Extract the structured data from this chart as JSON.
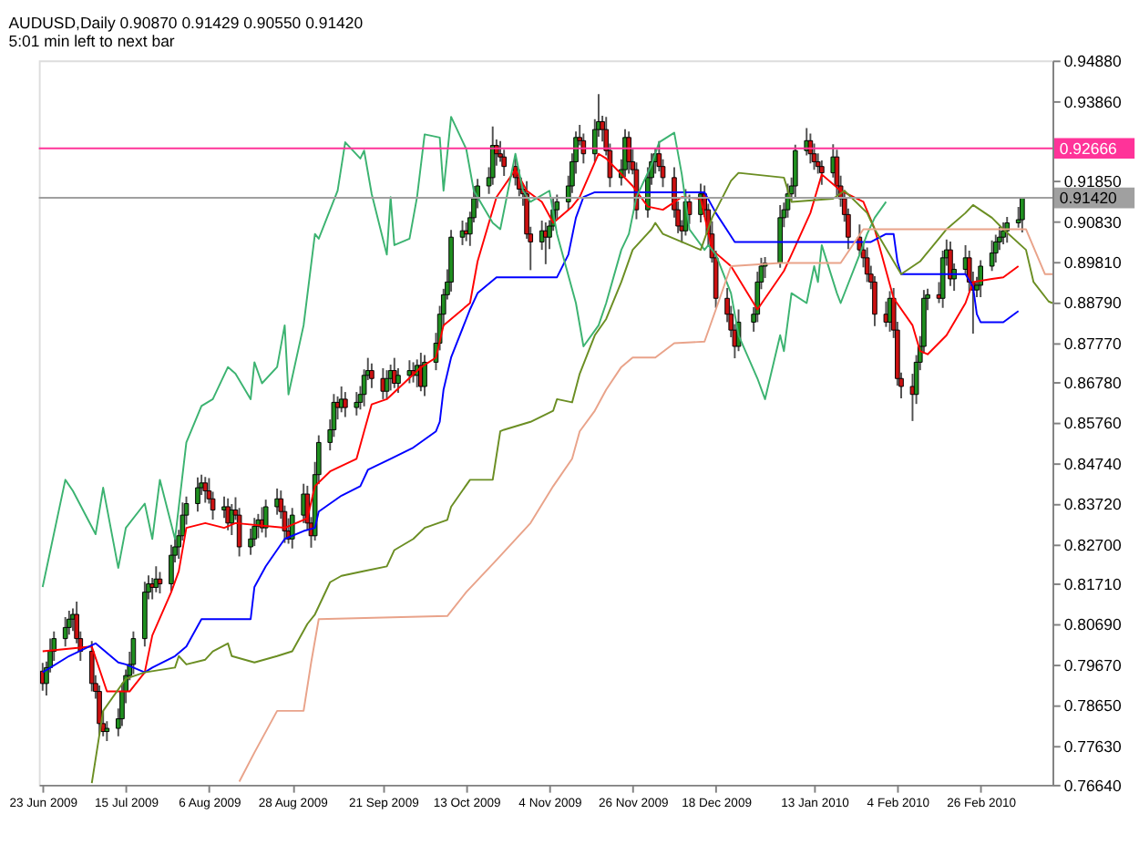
{
  "chart_data": {
    "type": "candlestick",
    "title": "AUDUSD,Daily  0.90870 0.91429 0.90550 0.91420",
    "subtitle": "5:01 min left to next bar",
    "x": [
      "2009-06-23",
      "2009-06-24",
      "2009-06-25",
      "2009-06-26",
      "2009-06-29",
      "2009-06-30",
      "2009-07-01",
      "2009-07-02",
      "2009-07-03",
      "2009-07-06",
      "2009-07-07",
      "2009-07-08",
      "2009-07-09",
      "2009-07-10",
      "2009-07-13",
      "2009-07-14",
      "2009-07-15",
      "2009-07-16",
      "2009-07-17",
      "2009-07-20",
      "2009-07-21",
      "2009-07-22",
      "2009-07-23",
      "2009-07-24",
      "2009-07-27",
      "2009-07-28",
      "2009-07-29",
      "2009-07-30",
      "2009-07-31",
      "2009-08-03",
      "2009-08-04",
      "2009-08-05",
      "2009-08-06",
      "2009-08-07",
      "2009-08-10",
      "2009-08-11",
      "2009-08-12",
      "2009-08-13",
      "2009-08-14",
      "2009-08-17",
      "2009-08-18",
      "2009-08-19",
      "2009-08-20",
      "2009-08-21",
      "2009-08-24",
      "2009-08-25",
      "2009-08-26",
      "2009-08-27",
      "2009-08-28",
      "2009-08-31",
      "2009-09-01",
      "2009-09-02",
      "2009-09-03",
      "2009-09-04",
      "2009-09-07",
      "2009-09-08",
      "2009-09-09",
      "2009-09-10",
      "2009-09-11",
      "2009-09-14",
      "2009-09-15",
      "2009-09-16",
      "2009-09-17",
      "2009-09-18",
      "2009-09-21",
      "2009-09-22",
      "2009-09-23",
      "2009-09-24",
      "2009-09-25",
      "2009-09-28",
      "2009-09-29",
      "2009-09-30",
      "2009-10-01",
      "2009-10-02",
      "2009-10-05",
      "2009-10-06",
      "2009-10-07",
      "2009-10-08",
      "2009-10-09",
      "2009-10-12",
      "2009-10-13",
      "2009-10-14",
      "2009-10-15",
      "2009-10-16",
      "2009-10-19",
      "2009-10-20",
      "2009-10-21",
      "2009-10-22",
      "2009-10-23",
      "2009-10-26",
      "2009-10-27",
      "2009-10-28",
      "2009-10-29",
      "2009-10-30",
      "2009-11-02",
      "2009-11-03",
      "2009-11-04",
      "2009-11-05",
      "2009-11-06",
      "2009-11-09",
      "2009-11-10",
      "2009-11-11",
      "2009-11-12",
      "2009-11-13",
      "2009-11-16",
      "2009-11-17",
      "2009-11-18",
      "2009-11-19",
      "2009-11-20",
      "2009-11-23",
      "2009-11-24",
      "2009-11-25",
      "2009-11-26",
      "2009-11-27",
      "2009-11-30",
      "2009-12-01",
      "2009-12-02",
      "2009-12-03",
      "2009-12-04",
      "2009-12-07",
      "2009-12-08",
      "2009-12-09",
      "2009-12-10",
      "2009-12-11",
      "2009-12-14",
      "2009-12-15",
      "2009-12-16",
      "2009-12-17",
      "2009-12-18",
      "2009-12-21",
      "2009-12-22",
      "2009-12-23",
      "2009-12-24",
      "2009-12-28",
      "2009-12-29",
      "2009-12-30",
      "2009-12-31",
      "2010-01-04",
      "2010-01-05",
      "2010-01-06",
      "2010-01-07",
      "2010-01-08",
      "2010-01-11",
      "2010-01-12",
      "2010-01-13",
      "2010-01-14",
      "2010-01-15",
      "2010-01-18",
      "2010-01-19",
      "2010-01-20",
      "2010-01-21",
      "2010-01-22",
      "2010-01-25",
      "2010-01-26",
      "2010-01-27",
      "2010-01-28",
      "2010-01-29",
      "2010-02-01",
      "2010-02-02",
      "2010-02-03",
      "2010-02-04",
      "2010-02-05",
      "2010-02-08",
      "2010-02-09",
      "2010-02-10",
      "2010-02-11",
      "2010-02-12",
      "2010-02-15",
      "2010-02-16",
      "2010-02-17",
      "2010-02-18",
      "2010-02-19",
      "2010-02-22",
      "2010-02-23",
      "2010-02-24",
      "2010-02-25",
      "2010-02-26",
      "2010-03-01",
      "2010-03-02",
      "2010-03-03",
      "2010-03-04",
      "2010-03-05",
      "2010-03-08",
      "2010-03-09"
    ],
    "ohlc": [
      [
        0.795,
        0.7971,
        0.7901,
        0.7919
      ],
      [
        0.7919,
        0.7974,
        0.7889,
        0.7959
      ],
      [
        0.7959,
        0.8032,
        0.7947,
        0.8
      ],
      [
        0.8,
        0.805,
        0.7976,
        0.8032
      ],
      [
        0.8032,
        0.8086,
        0.8012,
        0.806
      ],
      [
        0.806,
        0.8102,
        0.8042,
        0.8081
      ],
      [
        0.8081,
        0.8108,
        0.8051,
        0.8093
      ],
      [
        0.8093,
        0.8125,
        0.802,
        0.8032
      ],
      [
        0.8032,
        0.805,
        0.7976,
        0.8
      ],
      [
        0.8,
        0.8026,
        0.7899,
        0.7919
      ],
      [
        0.7919,
        0.794,
        0.7881,
        0.7899
      ],
      [
        0.7899,
        0.7914,
        0.7788,
        0.7818
      ],
      [
        0.7818,
        0.785,
        0.7786,
        0.7798
      ],
      [
        0.7798,
        0.7824,
        0.7774,
        0.7806
      ],
      [
        0.7806,
        0.7856,
        0.7786,
        0.783
      ],
      [
        0.783,
        0.792,
        0.7812,
        0.7899
      ],
      [
        0.7899,
        0.7954,
        0.7869,
        0.7939
      ],
      [
        0.7939,
        0.7999,
        0.7927,
        0.7967
      ],
      [
        0.7967,
        0.805,
        0.7943,
        0.8032
      ],
      [
        0.8032,
        0.8175,
        0.8012,
        0.8149
      ],
      [
        0.8149,
        0.8191,
        0.8131,
        0.817
      ],
      [
        0.817,
        0.8185,
        0.8131,
        0.8161
      ],
      [
        0.8161,
        0.8214,
        0.8149,
        0.8182
      ],
      [
        0.8182,
        0.82,
        0.8146,
        0.817
      ],
      [
        0.817,
        0.8268,
        0.815,
        0.8242
      ],
      [
        0.8242,
        0.8284,
        0.8224,
        0.8263
      ],
      [
        0.8263,
        0.8306,
        0.8233,
        0.8291
      ],
      [
        0.8291,
        0.8375,
        0.8279,
        0.8343
      ],
      [
        0.8343,
        0.839,
        0.8319,
        0.8372
      ],
      [
        0.8372,
        0.8438,
        0.8352,
        0.8412
      ],
      [
        0.8412,
        0.8445,
        0.8394,
        0.8424
      ],
      [
        0.8424,
        0.8439,
        0.8374,
        0.8404
      ],
      [
        0.8404,
        0.8436,
        0.8372,
        0.8384
      ],
      [
        0.8384,
        0.8402,
        0.8332,
        0.8356
      ],
      [
        0.8356,
        0.839,
        0.8336,
        0.8364
      ],
      [
        0.8364,
        0.8385,
        0.8305,
        0.8323
      ],
      [
        0.8323,
        0.8371,
        0.8293,
        0.8356
      ],
      [
        0.8356,
        0.8388,
        0.8331,
        0.8343
      ],
      [
        0.8343,
        0.8361,
        0.8239,
        0.8263
      ],
      [
        0.8263,
        0.8309,
        0.8243,
        0.8283
      ],
      [
        0.8283,
        0.8336,
        0.8265,
        0.8315
      ],
      [
        0.8315,
        0.8346,
        0.8285,
        0.8331
      ],
      [
        0.8331,
        0.8363,
        0.8299,
        0.8311
      ],
      [
        0.8311,
        0.8382,
        0.8287,
        0.8364
      ],
      [
        0.8364,
        0.841,
        0.8344,
        0.8384
      ],
      [
        0.8384,
        0.8405,
        0.8334,
        0.8352
      ],
      [
        0.8352,
        0.8367,
        0.8273,
        0.8303
      ],
      [
        0.8303,
        0.8335,
        0.8271,
        0.8283
      ],
      [
        0.8283,
        0.8361,
        0.8259,
        0.8343
      ],
      [
        0.8343,
        0.8422,
        0.8323,
        0.8396
      ],
      [
        0.8396,
        0.8417,
        0.8305,
        0.8323
      ],
      [
        0.8323,
        0.8338,
        0.8261,
        0.8291
      ],
      [
        0.8291,
        0.8477,
        0.8279,
        0.8445
      ],
      [
        0.8445,
        0.8544,
        0.8421,
        0.8526
      ],
      [
        0.8526,
        0.8584,
        0.8506,
        0.8558
      ],
      [
        0.8558,
        0.8648,
        0.854,
        0.8627
      ],
      [
        0.8627,
        0.8642,
        0.8584,
        0.8614
      ],
      [
        0.8614,
        0.8667,
        0.8602,
        0.8635
      ],
      [
        0.8635,
        0.8653,
        0.859,
        0.8614
      ],
      [
        0.8614,
        0.8653,
        0.8594,
        0.8627
      ],
      [
        0.8627,
        0.8668,
        0.8609,
        0.8647
      ],
      [
        0.8647,
        0.871,
        0.8617,
        0.8695
      ],
      [
        0.8695,
        0.8739,
        0.8683,
        0.8707
      ],
      [
        0.8707,
        0.8725,
        0.8663,
        0.8687
      ],
      [
        0.8687,
        0.8713,
        0.8635,
        0.8655
      ],
      [
        0.8655,
        0.8708,
        0.8637,
        0.8687
      ],
      [
        0.8687,
        0.8722,
        0.8657,
        0.8707
      ],
      [
        0.8707,
        0.8739,
        0.8663,
        0.8675
      ],
      [
        0.8675,
        0.8713,
        0.8651,
        0.8695
      ],
      [
        0.8695,
        0.8733,
        0.8675,
        0.8707
      ],
      [
        0.8707,
        0.8728,
        0.8677,
        0.8695
      ],
      [
        0.8695,
        0.8735,
        0.8665,
        0.872
      ],
      [
        0.872,
        0.8752,
        0.8655,
        0.8667
      ],
      [
        0.8667,
        0.8746,
        0.8643,
        0.8728
      ],
      [
        0.8728,
        0.8802,
        0.8708,
        0.8776
      ],
      [
        0.8776,
        0.887,
        0.8758,
        0.8849
      ],
      [
        0.8849,
        0.8913,
        0.8819,
        0.8898
      ],
      [
        0.8898,
        0.8962,
        0.8886,
        0.893
      ],
      [
        0.893,
        0.9061,
        0.8906,
        0.9043
      ],
      [
        0.9043,
        0.9085,
        0.9023,
        0.9059
      ],
      [
        0.9059,
        0.908,
        0.9033,
        0.9051
      ],
      [
        0.9051,
        0.9107,
        0.9021,
        0.9092
      ],
      [
        0.9092,
        0.9172,
        0.908,
        0.914
      ],
      [
        0.914,
        0.919,
        0.9116,
        0.9172
      ],
      [
        0.9172,
        0.9219,
        0.9152,
        0.9193
      ],
      [
        0.9193,
        0.9322,
        0.9175,
        0.9274
      ],
      [
        0.9274,
        0.9289,
        0.9223,
        0.9253
      ],
      [
        0.9253,
        0.9285,
        0.9233,
        0.9245
      ],
      [
        0.9245,
        0.9263,
        0.9197,
        0.9221
      ],
      [
        0.9221,
        0.9247,
        0.9173,
        0.9193
      ],
      [
        0.9193,
        0.9214,
        0.9146,
        0.9164
      ],
      [
        0.9164,
        0.9179,
        0.9122,
        0.9152
      ],
      [
        0.9152,
        0.9184,
        0.9039,
        0.9051
      ],
      [
        0.9051,
        0.9069,
        0.896,
        0.9031
      ],
      [
        0.9031,
        0.9085,
        0.9011,
        0.9059
      ],
      [
        0.9059,
        0.908,
        0.8975,
        0.9043
      ],
      [
        0.9043,
        0.9086,
        0.9013,
        0.9071
      ],
      [
        0.9071,
        0.9144,
        0.9059,
        0.9112
      ],
      [
        0.9112,
        0.915,
        0.9088,
        0.9132
      ],
      [
        0.9132,
        0.9198,
        0.9112,
        0.9172
      ],
      [
        0.9172,
        0.9254,
        0.9154,
        0.9233
      ],
      [
        0.9233,
        0.9309,
        0.9203,
        0.9294
      ],
      [
        0.9294,
        0.9326,
        0.9274,
        0.9286
      ],
      [
        0.9286,
        0.9304,
        0.9229,
        0.9253
      ],
      [
        0.9253,
        0.934,
        0.9233,
        0.9314
      ],
      [
        0.9314,
        0.9403,
        0.9296,
        0.9334
      ],
      [
        0.9334,
        0.9349,
        0.9284,
        0.9314
      ],
      [
        0.9314,
        0.9346,
        0.9249,
        0.9261
      ],
      [
        0.9261,
        0.9279,
        0.9169,
        0.9193
      ],
      [
        0.9193,
        0.9239,
        0.9173,
        0.9213
      ],
      [
        0.9213,
        0.9315,
        0.9195,
        0.9294
      ],
      [
        0.9294,
        0.9309,
        0.9203,
        0.9233
      ],
      [
        0.9233,
        0.9265,
        0.9201,
        0.9213
      ],
      [
        0.9213,
        0.9231,
        0.9088,
        0.9112
      ],
      [
        0.9112,
        0.9219,
        0.9092,
        0.9193
      ],
      [
        0.9193,
        0.9254,
        0.9175,
        0.9233
      ],
      [
        0.9233,
        0.9268,
        0.9203,
        0.9253
      ],
      [
        0.9253,
        0.9285,
        0.9209,
        0.9221
      ],
      [
        0.9221,
        0.9239,
        0.9169,
        0.9193
      ],
      [
        0.9193,
        0.9219,
        0.9092,
        0.9112
      ],
      [
        0.9112,
        0.9133,
        0.9053,
        0.9071
      ],
      [
        0.9071,
        0.9086,
        0.9029,
        0.9059
      ],
      [
        0.9059,
        0.9164,
        0.9047,
        0.9132
      ],
      [
        0.9132,
        0.915,
        0.9076,
        0.91
      ],
      [
        0.91,
        0.9178,
        0.908,
        0.9152
      ],
      [
        0.9152,
        0.9173,
        0.9094,
        0.9112
      ],
      [
        0.9112,
        0.9127,
        0.9021,
        0.9051
      ],
      [
        0.9051,
        0.9083,
        0.8979,
        0.8991
      ],
      [
        0.8991,
        0.9009,
        0.8865,
        0.8889
      ],
      [
        0.8889,
        0.8915,
        0.8829,
        0.8849
      ],
      [
        0.8849,
        0.887,
        0.8791,
        0.8809
      ],
      [
        0.8809,
        0.8824,
        0.8738,
        0.8768
      ],
      [
        0.8768,
        0.8861,
        0.8756,
        0.8829
      ],
      [
        0.8829,
        0.8867,
        0.8805,
        0.8849
      ],
      [
        0.8849,
        0.8956,
        0.8829,
        0.893
      ],
      [
        0.893,
        0.8991,
        0.8912,
        0.897
      ],
      [
        0.897,
        0.8993,
        0.894,
        0.8978
      ],
      [
        0.8978,
        0.9124,
        0.8966,
        0.9092
      ],
      [
        0.9092,
        0.913,
        0.9068,
        0.9112
      ],
      [
        0.9112,
        0.9178,
        0.9092,
        0.9152
      ],
      [
        0.9152,
        0.9193,
        0.9134,
        0.9172
      ],
      [
        0.9172,
        0.9276,
        0.9142,
        0.9261
      ],
      [
        0.9261,
        0.9318,
        0.9249,
        0.9286
      ],
      [
        0.9286,
        0.9304,
        0.9229,
        0.9253
      ],
      [
        0.9253,
        0.9279,
        0.9213,
        0.9233
      ],
      [
        0.9233,
        0.9254,
        0.9203,
        0.9221
      ],
      [
        0.9221,
        0.9236,
        0.9175,
        0.9205
      ],
      [
        0.9205,
        0.9277,
        0.9193,
        0.9245
      ],
      [
        0.9245,
        0.9263,
        0.9148,
        0.9172
      ],
      [
        0.9172,
        0.9198,
        0.912,
        0.914
      ],
      [
        0.914,
        0.9161,
        0.9082,
        0.91
      ],
      [
        0.91,
        0.9115,
        0.9013,
        0.9043
      ],
      [
        0.9043,
        0.9075,
        0.8999,
        0.9011
      ],
      [
        0.9011,
        0.9029,
        0.8967,
        0.8991
      ],
      [
        0.8991,
        0.9017,
        0.893,
        0.895
      ],
      [
        0.895,
        0.8971,
        0.8912,
        0.893
      ],
      [
        0.893,
        0.8945,
        0.8819,
        0.8849
      ],
      [
        0.8849,
        0.8881,
        0.8817,
        0.8829
      ],
      [
        0.8829,
        0.8907,
        0.8805,
        0.8889
      ],
      [
        0.8889,
        0.8915,
        0.8789,
        0.8809
      ],
      [
        0.8809,
        0.883,
        0.8669,
        0.8687
      ],
      [
        0.8687,
        0.8702,
        0.8637,
        0.8667
      ],
      [
        0.8667,
        0.8699,
        0.858,
        0.8647
      ],
      [
        0.8647,
        0.8746,
        0.8623,
        0.8728
      ],
      [
        0.8728,
        0.8794,
        0.8708,
        0.8768
      ],
      [
        0.8768,
        0.891,
        0.875,
        0.8889
      ],
      [
        0.8889,
        0.8913,
        0.8859,
        0.8898
      ],
      [
        0.8898,
        0.893,
        0.8877,
        0.8889
      ],
      [
        0.8889,
        0.9009,
        0.8865,
        0.8991
      ],
      [
        0.8991,
        0.9037,
        0.8971,
        0.9011
      ],
      [
        0.9011,
        0.9032,
        0.892,
        0.8938
      ],
      [
        0.8938,
        0.8977,
        0.8908,
        0.8962
      ],
      [
        0.8962,
        0.9023,
        0.895,
        0.8991
      ],
      [
        0.8991,
        0.9009,
        0.8906,
        0.893
      ],
      [
        0.893,
        0.8956,
        0.88,
        0.891
      ],
      [
        0.891,
        0.8943,
        0.8892,
        0.8922
      ],
      [
        0.8922,
        0.8985,
        0.8892,
        0.897
      ],
      [
        0.897,
        0.9035,
        0.8958,
        0.9003
      ],
      [
        0.9003,
        0.9049,
        0.8979,
        0.9031
      ],
      [
        0.9031,
        0.9069,
        0.9011,
        0.9043
      ],
      [
        0.9043,
        0.908,
        0.9025,
        0.9059
      ],
      [
        0.9059,
        0.9094,
        0.9029,
        0.9079
      ],
      [
        0.9079,
        0.9119,
        0.9067,
        0.9087
      ],
      [
        0.9087,
        0.9143,
        0.9055,
        0.9142
      ]
    ],
    "series": [
      {
        "type": "line",
        "color": "#ff0000",
        "x": [
          "2009-06-23",
          "2009-07-06",
          "2009-07-10",
          "2009-07-16",
          "2009-07-20",
          "2009-07-22",
          "2009-07-27",
          "2009-07-29",
          "2009-07-31",
          "2009-08-05",
          "2009-08-10",
          "2009-08-13",
          "2009-08-26",
          "2009-09-01",
          "2009-09-03",
          "2009-09-07",
          "2009-09-14",
          "2009-09-16",
          "2009-09-18",
          "2009-09-22",
          "2009-10-01",
          "2009-10-05",
          "2009-10-07",
          "2009-10-14",
          "2009-10-16",
          "2009-10-21",
          "2009-10-26",
          "2009-10-29",
          "2009-11-02",
          "2009-11-05",
          "2009-11-10",
          "2009-11-12",
          "2009-11-17",
          "2009-11-19",
          "2009-11-26",
          "2009-11-30",
          "2009-12-04",
          "2009-12-09",
          "2009-12-14",
          "2009-12-17",
          "2009-12-22",
          "2009-12-29",
          "2010-01-05",
          "2010-01-07",
          "2010-01-12",
          "2010-01-15",
          "2010-01-20",
          "2010-01-26",
          "2010-01-29",
          "2010-02-03",
          "2010-02-08",
          "2010-02-10",
          "2010-02-12",
          "2010-02-17",
          "2010-02-22",
          "2010-02-24",
          "2010-03-01",
          "2010-03-04",
          "2010-03-08"
        ],
        "values": [
          0.8,
          0.8012,
          0.7899,
          0.7899,
          0.7947,
          0.804,
          0.8149,
          0.8202,
          0.8311,
          0.8323,
          0.8311,
          0.8323,
          0.8311,
          0.8335,
          0.8416,
          0.8453,
          0.8485,
          0.8554,
          0.8622,
          0.8635,
          0.8715,
          0.874,
          0.8821,
          0.8877,
          0.8982,
          0.9144,
          0.9213,
          0.916,
          0.9132,
          0.9079,
          0.912,
          0.9144,
          0.9253,
          0.9241,
          0.9172,
          0.912,
          0.9112,
          0.9144,
          0.914,
          0.9011,
          0.897,
          0.8861,
          0.8958,
          0.8999,
          0.9104,
          0.9201,
          0.916,
          0.9132,
          0.9063,
          0.8889,
          0.8821,
          0.8756,
          0.8748,
          0.8796,
          0.8877,
          0.893,
          0.8938,
          0.8942,
          0.897
        ]
      },
      {
        "type": "line",
        "color": "#0000ff",
        "x": [
          "2009-06-23",
          "2009-06-30",
          "2009-07-07",
          "2009-07-13",
          "2009-07-15",
          "2009-07-20",
          "2009-07-22",
          "2009-07-28",
          "2009-07-31",
          "2009-08-04",
          "2009-08-17",
          "2009-08-18",
          "2009-08-21",
          "2009-08-26",
          "2009-08-31",
          "2009-09-03",
          "2009-09-04",
          "2009-09-10",
          "2009-09-15",
          "2009-09-17",
          "2009-09-23",
          "2009-09-29",
          "2009-10-05",
          "2009-10-06",
          "2009-10-07",
          "2009-10-09",
          "2009-10-14",
          "2009-10-16",
          "2009-10-21",
          "2009-11-06",
          "2009-11-09",
          "2009-11-11",
          "2009-11-13",
          "2009-11-16",
          "2009-12-15",
          "2009-12-18",
          "2009-12-23",
          "2010-01-28",
          "2010-02-01",
          "2010-02-03",
          "2010-02-04",
          "2010-02-05",
          "2010-02-22",
          "2010-02-24",
          "2010-02-25",
          "2010-02-26",
          "2010-03-04",
          "2010-03-08"
        ],
        "values": [
          0.7947,
          0.7988,
          0.802,
          0.7972,
          0.7967,
          0.7947,
          0.7959,
          0.7988,
          0.8012,
          0.8081,
          0.8081,
          0.8162,
          0.8214,
          0.8283,
          0.8303,
          0.8311,
          0.8352,
          0.8392,
          0.8416,
          0.8457,
          0.8485,
          0.8513,
          0.8554,
          0.8578,
          0.8659,
          0.874,
          0.8861,
          0.8902,
          0.8942,
          0.8942,
          0.8999,
          0.9092,
          0.9144,
          0.9156,
          0.9156,
          0.9104,
          0.9031,
          0.9031,
          0.9051,
          0.9051,
          0.8982,
          0.895,
          0.895,
          0.8918,
          0.8849,
          0.8829,
          0.8829,
          0.8857
        ]
      },
      {
        "type": "line",
        "color": "#3cb371",
        "x": [
          "2009-06-23",
          "2009-06-29",
          "2009-07-01",
          "2009-07-07",
          "2009-07-09",
          "2009-07-13",
          "2009-07-15",
          "2009-07-20",
          "2009-07-22",
          "2009-07-24",
          "2009-07-28",
          "2009-07-31",
          "2009-08-04",
          "2009-08-07",
          "2009-08-11",
          "2009-08-13",
          "2009-08-17",
          "2009-08-18",
          "2009-08-20",
          "2009-08-24",
          "2009-08-26",
          "2009-08-27",
          "2009-08-31",
          "2009-09-03",
          "2009-09-04",
          "2009-09-09",
          "2009-09-11",
          "2009-09-15",
          "2009-09-16",
          "2009-09-18",
          "2009-09-22",
          "2009-09-23",
          "2009-09-24",
          "2009-09-28",
          "2009-09-30",
          "2009-10-02",
          "2009-10-06",
          "2009-10-07",
          "2009-10-09",
          "2009-10-13",
          "2009-10-15",
          "2009-10-20",
          "2009-10-22",
          "2009-10-26",
          "2009-10-28",
          "2009-10-30",
          "2009-11-04",
          "2009-11-06",
          "2009-11-11",
          "2009-11-13",
          "2009-11-17",
          "2009-11-19",
          "2009-11-23",
          "2009-11-25",
          "2009-11-27",
          "2009-12-01",
          "2009-12-03",
          "2009-12-07",
          "2009-12-09",
          "2009-12-11",
          "2009-12-15",
          "2009-12-16",
          "2009-12-18",
          "2009-12-22",
          "2009-12-24",
          "2009-12-29",
          "2009-12-31",
          "2010-01-04",
          "2010-01-05",
          "2010-01-07",
          "2010-01-11",
          "2010-01-13",
          "2010-01-14",
          "2010-01-15",
          "2010-01-19",
          "2010-01-20",
          "2010-01-25",
          "2010-01-27",
          "2010-01-29",
          "2010-02-01"
        ],
        "values": [
          0.8162,
          0.8432,
          0.8404,
          0.8295,
          0.8412,
          0.821,
          0.8311,
          0.8372,
          0.8283,
          0.8432,
          0.8283,
          0.8526,
          0.8618,
          0.8635,
          0.8716,
          0.8699,
          0.8635,
          0.8728,
          0.8675,
          0.8716,
          0.8821,
          0.8647,
          0.8821,
          0.9051,
          0.9039,
          0.916,
          0.9282,
          0.9241,
          0.9261,
          0.9152,
          0.8999,
          0.9144,
          0.9023,
          0.9039,
          0.9144,
          0.9302,
          0.9294,
          0.916,
          0.9346,
          0.9265,
          0.916,
          0.9079,
          0.9063,
          0.9253,
          0.916,
          0.9132,
          0.916,
          0.9051,
          0.8877,
          0.8768,
          0.8821,
          0.8877,
          0.9011,
          0.9051,
          0.9144,
          0.9225,
          0.9282,
          0.9306,
          0.9201,
          0.9063,
          0.9011,
          0.9023,
          0.8999,
          0.8902,
          0.8796,
          0.8687,
          0.8635,
          0.8796,
          0.8756,
          0.8902,
          0.8877,
          0.897,
          0.893,
          0.9023,
          0.8902,
          0.8877,
          0.8999,
          0.9051,
          0.9092,
          0.9132
        ]
      },
      {
        "type": "line",
        "color": "#6b8e23",
        "x": [
          "2009-07-06",
          "2009-07-09",
          "2009-07-15",
          "2009-07-20",
          "2009-07-28",
          "2009-07-29",
          "2009-07-31",
          "2009-08-05",
          "2009-08-07",
          "2009-08-11",
          "2009-08-12",
          "2009-08-18",
          "2009-08-24",
          "2009-08-28",
          "2009-09-01",
          "2009-09-03",
          "2009-09-07",
          "2009-09-10",
          "2009-09-16",
          "2009-09-22",
          "2009-09-24",
          "2009-09-29",
          "2009-10-02",
          "2009-10-08",
          "2009-10-09",
          "2009-10-14",
          "2009-10-20",
          "2009-10-22",
          "2009-10-23",
          "2009-10-30",
          "2009-11-05",
          "2009-11-06",
          "2009-11-10",
          "2009-11-12",
          "2009-11-16",
          "2009-11-19",
          "2009-11-23",
          "2009-11-26",
          "2009-12-01",
          "2009-12-02",
          "2009-12-04",
          "2009-12-09",
          "2009-12-14",
          "2009-12-17",
          "2009-12-22",
          "2009-12-24",
          "2010-01-05",
          "2010-01-07",
          "2010-01-18",
          "2010-01-21",
          "2010-01-27",
          "2010-01-29",
          "2010-02-03",
          "2010-02-05",
          "2010-02-10",
          "2010-02-17",
          "2010-02-22",
          "2010-02-24",
          "2010-03-01",
          "2010-03-04",
          "2010-03-10",
          "2010-03-12",
          "2010-03-16",
          "2010-03-17"
        ],
        "values": [
          0.7668,
          0.785,
          0.7931,
          0.7947,
          0.7959,
          0.7988,
          0.7967,
          0.7979,
          0.8,
          0.802,
          0.7988,
          0.7972,
          0.7988,
          0.8,
          0.8069,
          0.8093,
          0.8174,
          0.819,
          0.8202,
          0.8214,
          0.8255,
          0.8283,
          0.8311,
          0.8331,
          0.8364,
          0.8432,
          0.8432,
          0.8554,
          0.8558,
          0.8578,
          0.8606,
          0.8635,
          0.8627,
          0.8699,
          0.8796,
          0.8837,
          0.893,
          0.9011,
          0.9063,
          0.9079,
          0.9051,
          0.9031,
          0.9011,
          0.9092,
          0.9185,
          0.9205,
          0.9193,
          0.9132,
          0.914,
          0.916,
          0.9104,
          0.9063,
          0.8982,
          0.895,
          0.8982,
          0.9063,
          0.9104,
          0.9124,
          0.9092,
          0.9063,
          0.9011,
          0.893,
          0.8881,
          0.8877
        ]
      },
      {
        "type": "line",
        "color": "#e9a38a",
        "x": [
          "2009-08-14",
          "2009-08-18",
          "2009-08-24",
          "2009-08-31",
          "2009-09-02",
          "2009-09-04",
          "2009-10-08",
          "2009-10-13",
          "2009-10-21",
          "2009-10-30",
          "2009-11-05",
          "2009-11-10",
          "2009-11-12",
          "2009-11-16",
          "2009-11-19",
          "2009-11-23",
          "2009-11-26",
          "2009-12-02",
          "2009-12-07",
          "2009-12-15",
          "2009-12-18",
          "2009-12-22",
          "2010-01-04",
          "2010-01-20",
          "2010-01-26",
          "2010-03-10",
          "2010-03-15",
          "2010-03-17"
        ],
        "values": [
          0.7672,
          0.7745,
          0.785,
          0.785,
          0.7972,
          0.8081,
          0.8089,
          0.8149,
          0.823,
          0.8323,
          0.8416,
          0.8485,
          0.8554,
          0.8606,
          0.8659,
          0.8716,
          0.874,
          0.874,
          0.8776,
          0.878,
          0.8861,
          0.897,
          0.8978,
          0.8978,
          0.9063,
          0.9063,
          0.895,
          0.895
        ]
      }
    ],
    "ref_lines": [
      {
        "axis": "y",
        "value": 0.92666,
        "label": "0.92666",
        "color": "#ff3399"
      },
      {
        "axis": "y",
        "value": 0.9142,
        "label": "0.91420",
        "color": "#a0a0a0"
      }
    ],
    "xlim": [
      "2009-06-22",
      "2010-03-17"
    ],
    "xticks": [
      {
        "value": "2009-06-23",
        "label": "23 Jun 2009"
      },
      {
        "value": "2009-07-15",
        "label": "15 Jul 2009"
      },
      {
        "value": "2009-08-06",
        "label": "6 Aug 2009"
      },
      {
        "value": "2009-08-28",
        "label": "28 Aug 2009"
      },
      {
        "value": "2009-09-21",
        "label": "21 Sep 2009"
      },
      {
        "value": "2009-10-13",
        "label": "13 Oct 2009"
      },
      {
        "value": "2009-11-04",
        "label": "4 Nov 2009"
      },
      {
        "value": "2009-11-26",
        "label": "26 Nov 2009"
      },
      {
        "value": "2009-12-18",
        "label": "18 Dec 2009"
      },
      {
        "value": "2010-01-13",
        "label": "13 Jan 2010"
      },
      {
        "value": "2010-02-04",
        "label": "4 Feb 2010"
      },
      {
        "value": "2010-02-26",
        "label": "26 Feb 2010"
      }
    ],
    "ylim": [
      0.7664,
      0.9488
    ],
    "yticks": [
      {
        "value": 0.9488,
        "label": "0.94880"
      },
      {
        "value": 0.9386,
        "label": "0.93860"
      },
      {
        "value": 0.9284,
        "label": null
      },
      {
        "value": 0.9185,
        "label": "0.91850"
      },
      {
        "value": 0.9083,
        "label": "0.90830"
      },
      {
        "value": 0.8981,
        "label": "0.89810"
      },
      {
        "value": 0.8879,
        "label": "0.88790"
      },
      {
        "value": 0.8777,
        "label": "0.87770"
      },
      {
        "value": 0.8678,
        "label": "0.86780"
      },
      {
        "value": 0.8576,
        "label": "0.85760"
      },
      {
        "value": 0.8474,
        "label": "0.84740"
      },
      {
        "value": 0.8372,
        "label": "0.83720"
      },
      {
        "value": 0.827,
        "label": "0.82700"
      },
      {
        "value": 0.8171,
        "label": "0.81710"
      },
      {
        "value": 0.8069,
        "label": "0.80690"
      },
      {
        "value": 0.7967,
        "label": "0.79670"
      },
      {
        "value": 0.7865,
        "label": "0.78650"
      },
      {
        "value": 0.7763,
        "label": "0.77630"
      },
      {
        "value": 0.7664,
        "label": "0.76640"
      }
    ]
  }
}
